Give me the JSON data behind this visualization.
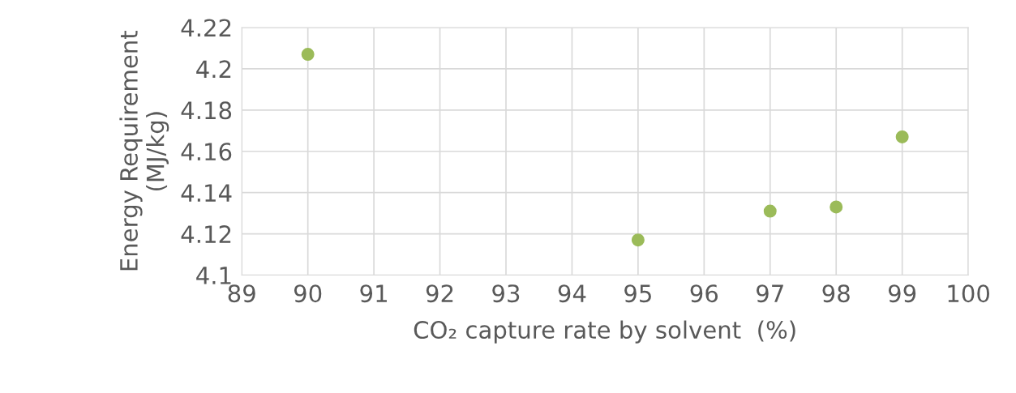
{
  "chart_data": {
    "type": "scatter",
    "xlabel": "CO₂ capture rate by solvent  (%)",
    "ylabel": "Energy Requirement\n(MJ/kg)",
    "x": [
      90,
      95,
      97,
      98,
      99
    ],
    "series": [
      {
        "color": "#9bbb59",
        "values": [
          4.207,
          4.117,
          4.131,
          4.133,
          4.167
        ]
      }
    ],
    "xlim": [
      89,
      100
    ],
    "xticks": [
      89,
      90,
      91,
      92,
      93,
      94,
      95,
      96,
      97,
      98,
      99,
      100
    ],
    "ylim": [
      4.1,
      4.22
    ],
    "yticks": [
      4.1,
      4.12,
      4.14,
      4.16,
      4.18,
      4.2,
      4.22
    ],
    "grid": true,
    "marker": "circle"
  }
}
